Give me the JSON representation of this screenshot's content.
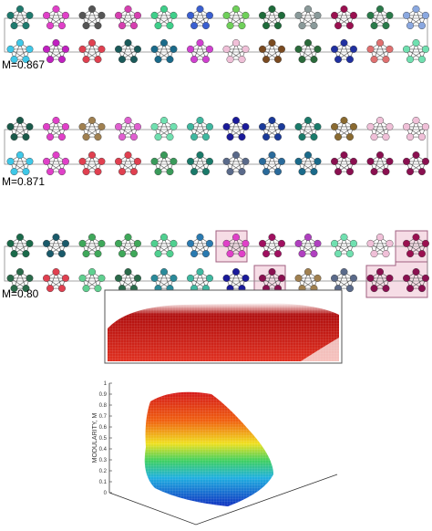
{
  "panels": [
    {
      "label": "M=0.867",
      "clique_colors": [
        "#1f7a6e",
        "#e040c8",
        "#555555",
        "#d63fb0",
        "#3fcf8a",
        "#3a5fd0",
        "#6fd05a",
        "#1e6b3a",
        "#8a9a9a",
        "#9a1050",
        "#2a7a4a",
        "#8aa8e0",
        "#3fc8e8",
        "#c020c0",
        "#e04050",
        "#1a5a5a",
        "#1a6a8a",
        "#d040d0",
        "#f0c0d8",
        "#7a4a20",
        "#2a6a3a",
        "#2030a0",
        "#e07070",
        "#70e0b0"
      ]
    },
    {
      "label": "M=0.871",
      "clique_colors": [
        "#1a5a4a",
        "#e040c8",
        "#a08050",
        "#e060d0",
        "#70e0b0",
        "#3fb8a0",
        "#1a1a9a",
        "#1a3a9a",
        "#1a7a6a",
        "#8a6a30",
        "#f0c0d8",
        "#f0c0d8",
        "#3fc8e8",
        "#e040c8",
        "#e04050",
        "#e04050",
        "#3a9a5a",
        "#1a7a6a",
        "#5a6a8a",
        "#2a6a9a",
        "#1a6a8a",
        "#8a1050",
        "#8a1050",
        "#8a1050"
      ]
    },
    {
      "label": "M=0.80",
      "clique_colors": [
        "#1a6a4a",
        "#1a5a6a",
        "#3fa85a",
        "#3fa85a",
        "#50d090",
        "#2a7ab0",
        "#e040c8",
        "#a01060",
        "#b040c0",
        "#70e0b0",
        "#f0c0d8",
        "#9a1050",
        "#2a6a4a",
        "#e04050",
        "#60d090",
        "#2a6a4a",
        "#2a8a9a",
        "#3fb8a0",
        "#1a1a9a",
        "#8a1050",
        "#a08050",
        "#5a6a8a",
        "#8a1050",
        "#8a1050"
      ]
    }
  ],
  "modularity_plot": {
    "ylabel": "MODULARITY, M",
    "zticks": [
      0,
      0.1,
      0.2,
      0.3,
      0.4,
      0.5,
      0.6,
      0.7,
      0.8,
      0.9,
      1
    ],
    "zlim": [
      0,
      1
    ]
  }
}
